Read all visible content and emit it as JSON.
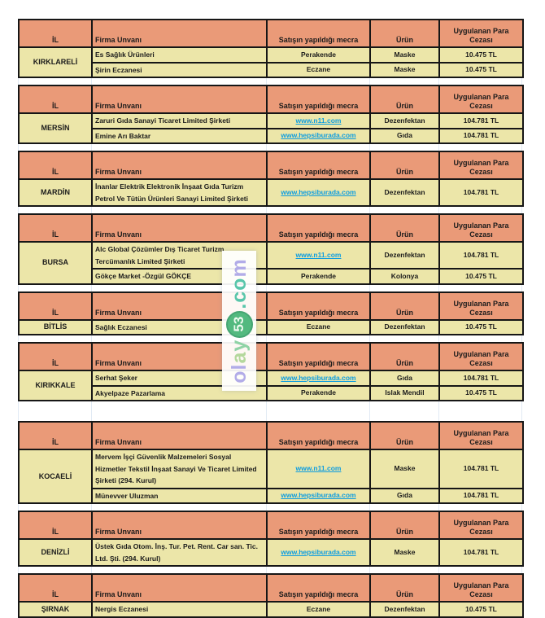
{
  "columns": [
    "İL",
    "Firma Unvanı",
    "Satışın yapıldığı mecra",
    "Ürün",
    "Uygulanan Para Cezası"
  ],
  "tables": [
    {
      "il": "KIRKLARELİ",
      "rows": [
        {
          "firma": "Es Sağlık Ürünleri",
          "mecra": "Perakende",
          "urun": "Maske",
          "ceza": "10.475 TL"
        },
        {
          "firma": "Şirin Eczanesi",
          "mecra": "Eczane",
          "urun": "Maske",
          "ceza": "10.475 TL"
        }
      ]
    },
    {
      "il": "MERSİN",
      "rows": [
        {
          "firma": "Zaruri Gıda Sanayi Ticaret Limited Şirketi",
          "mecra": "www.n11.com",
          "urun": "Dezenfektan",
          "ceza": "104.781 TL"
        },
        {
          "firma": "Emine Arı Baktar",
          "mecra": "www.hepsiburada.com",
          "urun": "Gıda",
          "ceza": "104.781 TL"
        }
      ]
    },
    {
      "il": "MARDİN",
      "rows": [
        {
          "firma": "İnanlar Elektrik Elektronik İnşaat Gıda Turizm Petrol Ve Tütün Ürünleri Sanayi Limited Şirketi",
          "mecra": "www.hepsiburada.com",
          "urun": "Dezenfektan",
          "ceza": "104.781 TL"
        }
      ]
    },
    {
      "il": "BURSA",
      "rows": [
        {
          "firma": "Alc Global Çözümler Dış Ticaret Turizm Tercümanlık Limited Şirketi",
          "mecra": "www.n11.com",
          "urun": "Dezenfektan",
          "ceza": "104.781 TL"
        },
        {
          "firma": "Gökçe Market -Özgül GÖKÇE",
          "mecra": "Perakende",
          "urun": "Kolonya",
          "ceza": "10.475 TL"
        }
      ]
    },
    {
      "il": "BİTLİS",
      "rows": [
        {
          "firma": "Sağlık Eczanesi",
          "mecra": "Eczane",
          "urun": "Dezenfektan",
          "ceza": "10.475 TL"
        }
      ]
    },
    {
      "il": "KIRIKKALE",
      "rows": [
        {
          "firma": "Serhat Şeker",
          "mecra": "www.hepsiburada.com",
          "urun": "Gıda",
          "ceza": "104.781 TL"
        },
        {
          "firma": "Akyelpaze Pazarlama",
          "mecra": "Perakende",
          "urun": "Islak Mendil",
          "ceza": "10.475 TL"
        }
      ]
    },
    {
      "il": "KOCAELİ",
      "rows": [
        {
          "firma": "Mervem İşçi Güvenlik Malzemeleri Sosyal Hizmetler Tekstil İnşaat Sanayi Ve Ticaret Limited Şirketi (294. Kurul)",
          "mecra": "www.n11.com",
          "urun": "Maske",
          "ceza": "104.781 TL"
        },
        {
          "firma": "Münevver Uluzman",
          "mecra": "www.hepsiburada.com",
          "urun": "Gıda",
          "ceza": "104.781 TL"
        }
      ]
    },
    {
      "il": "DENİZLİ",
      "rows": [
        {
          "firma": "Üstek Gıda Otom. İnş. Tur. Pet. Rent. Car san. Tic. Ltd. Şti. (294. Kurul)",
          "mecra": "www.hepsiburada.com",
          "urun": "Maske",
          "ceza": "104.781 TL"
        }
      ]
    },
    {
      "il": "ŞIRNAK",
      "rows": [
        {
          "firma": "Nergis Eczanesi",
          "mecra": "Eczane",
          "urun": "Dezenfektan",
          "ceza": "10.475 TL"
        }
      ]
    }
  ],
  "watermark": {
    "text": "olay53.com",
    "prefix": "olay",
    "badge": "53",
    "suffix": ".com"
  },
  "colors": {
    "header-bg": "#ea9a78",
    "cell-bg": "#ece6a9",
    "border": "#161616",
    "link": "#0d9de0",
    "wm-lavender": "#b2ace8",
    "wm-green": "#53b97f",
    "wm-teal": "#59c6ab"
  }
}
